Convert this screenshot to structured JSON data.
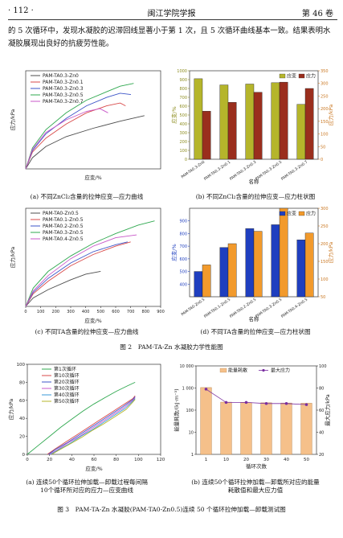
{
  "header": {
    "page_number": "· 112 ·",
    "journal": "闽江学院学报",
    "volume": "第 46 卷"
  },
  "body_text": [
    "的 5 次循环中，发现水凝胶的迟滞回线显著小于第 1 次，且 5 次循环曲线基本一致。结果表明水",
    "凝胶展现出良好的抗疲劳性能。"
  ],
  "captions": {
    "a": "(a) 不同ZnCl₂含量的拉伸应变—应力曲线",
    "b": "(b) 不同ZnCl₂含量的拉伸应变—应力柱状图",
    "c": "(c) 不同TA含量的拉伸应变—应力曲线",
    "d": "(d) 不同TA含量的拉伸应变—应力柱状图",
    "fig2": "图 2　PAM-TA-Zn 水凝胶力学性能图",
    "e1": "(a) 连续50个循环拉伸加载—卸载过程每间隔",
    "e2": "10个循环所对应的应力—应变曲线",
    "f1": "(b) 连续50个循环拉伸加载—卸载所对应的能量",
    "f2": "耗散值和最大应力值",
    "fig3": "图 3　PAM-TA-Zn 水凝胶(PAM-TA0-Zn0.5)连续 50 个循环拉伸加载—卸载测试图"
  },
  "colors": {
    "s1": "#4d4d4d",
    "s2": "#d84a4a",
    "s3": "#3d55c8",
    "s4": "#2fa84f",
    "s5": "#c857c8",
    "s6": "#3a9ad8",
    "olive": "#8c8c1e",
    "orangeAxis": "#c9751e",
    "bar_strain_b": "#b5b52b",
    "bar_stress_b": "#9a2e1d",
    "bar_strain_d": "#1f3fbf",
    "bar_stress_d": "#f29a2c",
    "bar_energy": "#f5c08a",
    "line_maxstress": "#7a2ea0"
  },
  "chart_data": [
    {
      "id": "a",
      "type": "line",
      "xlabel": "应变/%",
      "ylabel": "应力/kPa",
      "xlim": [
        0,
        1000
      ],
      "ylim": [
        0,
        350
      ],
      "xticks": [],
      "yticks": [],
      "series": [
        {
          "name": "PAM-TA0.3-Zn0",
          "x": [
            0,
            50,
            150,
            300,
            500,
            700,
            880
          ],
          "y": [
            0,
            40,
            80,
            115,
            145,
            170,
            190
          ]
        },
        {
          "name": "PAM-TA0.3-Zn0.1",
          "x": [
            0,
            50,
            150,
            300,
            450,
            600,
            700,
            740
          ],
          "y": [
            0,
            60,
            110,
            160,
            200,
            225,
            235,
            225
          ]
        },
        {
          "name": "PAM-TA0.3-Zn0.3",
          "x": [
            0,
            50,
            150,
            300,
            450,
            600,
            700,
            780
          ],
          "y": [
            0,
            65,
            125,
            180,
            225,
            255,
            270,
            265
          ]
        },
        {
          "name": "PAM-TA0.3-Zn0.5",
          "x": [
            0,
            50,
            150,
            300,
            450,
            600,
            700,
            800
          ],
          "y": [
            0,
            75,
            140,
            200,
            245,
            275,
            295,
            305
          ]
        },
        {
          "name": "PAM-TA0.3-Zn0.7",
          "x": [
            0,
            50,
            150,
            300,
            450,
            550,
            610
          ],
          "y": [
            0,
            70,
            130,
            175,
            205,
            215,
            200
          ]
        }
      ]
    },
    {
      "id": "b",
      "type": "bar",
      "xlabel": "名称",
      "ylabel": "应变/%",
      "y2label": "应力/kPa",
      "categories": [
        "PAM-TA0.3-Zn0",
        "PAM-TA0.3-Zn0.1",
        "PAM-TA0.3-Zn0.3",
        "PAM-TA0.3-Zn0.5",
        "PAM-TA0.3-Zn0.7"
      ],
      "ylim": [
        0,
        1000
      ],
      "yticks": [
        0,
        100,
        200,
        300,
        400,
        500,
        600,
        700,
        800,
        900,
        1000
      ],
      "y2lim": [
        0,
        350
      ],
      "y2ticks": [
        0,
        50,
        100,
        150,
        200,
        250,
        300,
        350
      ],
      "series": [
        {
          "name": "应变",
          "values": [
            910,
            840,
            850,
            865,
            620
          ],
          "axis": "left"
        },
        {
          "name": "应力",
          "values": [
            190,
            225,
            265,
            305,
            280
          ],
          "axis": "right"
        }
      ]
    },
    {
      "id": "c",
      "type": "line",
      "xlabel": "应变/%",
      "ylabel": "应力/kPa",
      "xlim": [
        0,
        900
      ],
      "ylim": [
        0,
        350
      ],
      "xticks": [
        0,
        100,
        200,
        300,
        400,
        500,
        600,
        700,
        800,
        900
      ],
      "yticks": [],
      "series": [
        {
          "name": "PAM-TA0-Zn0.5",
          "x": [
            0,
            50,
            150,
            300,
            400,
            500
          ],
          "y": [
            0,
            30,
            60,
            95,
            115,
            125
          ]
        },
        {
          "name": "PAM-TA0.1-Zn0.5",
          "x": [
            0,
            50,
            150,
            300,
            450,
            600,
            700
          ],
          "y": [
            0,
            45,
            90,
            145,
            185,
            215,
            230
          ]
        },
        {
          "name": "PAM-TA0.2-Zn0.5",
          "x": [
            0,
            50,
            150,
            300,
            450,
            600,
            680
          ],
          "y": [
            0,
            50,
            100,
            155,
            195,
            220,
            230
          ]
        },
        {
          "name": "PAM-TA0.3-Zn0.5",
          "x": [
            0,
            50,
            150,
            300,
            450,
            600,
            750,
            860
          ],
          "y": [
            0,
            65,
            125,
            180,
            225,
            260,
            290,
            305
          ]
        },
        {
          "name": "PAM-TA0.4-Zn0.5",
          "x": [
            0,
            50,
            150,
            300,
            450,
            600,
            740
          ],
          "y": [
            0,
            55,
            110,
            170,
            215,
            245,
            255
          ]
        }
      ]
    },
    {
      "id": "d",
      "type": "bar",
      "xlabel": "名称",
      "ylabel": "应变/%",
      "y2label": "应力/kPa",
      "categories": [
        "PAM-TA0-Zn0.5",
        "PAM-TA0.1-Zn0.5",
        "PAM-TA0.2-Zn0.5",
        "PAM-TA0.3-Zn0.5",
        "PAM-TA0.4-Zn0.5"
      ],
      "ylim": [
        300,
        1000
      ],
      "yticks": [
        400,
        500,
        600,
        700,
        800,
        900
      ],
      "y2lim": [
        50,
        300
      ],
      "y2ticks": [
        50,
        100,
        150,
        200,
        250,
        300
      ],
      "series": [
        {
          "name": "应变",
          "values": [
            500,
            690,
            840,
            870,
            750
          ],
          "axis": "left"
        },
        {
          "name": "应力",
          "values": [
            140,
            200,
            235,
            300,
            230
          ],
          "axis": "right"
        }
      ]
    },
    {
      "id": "e",
      "type": "line",
      "xlabel": "应变/%",
      "ylabel": "应力/kPa",
      "xlim": [
        0,
        120
      ],
      "ylim": [
        0,
        100
      ],
      "xticks": [
        0,
        20,
        40,
        60,
        80,
        100,
        120
      ],
      "yticks": [
        0,
        20,
        40,
        60,
        80,
        100
      ],
      "series": [
        {
          "name": "第1次循环",
          "x": [
            0,
            10,
            20,
            30,
            40,
            50,
            60,
            70,
            80,
            90,
            97
          ],
          "y": [
            0,
            10,
            20,
            30,
            39,
            48,
            56,
            63,
            70,
            76,
            80
          ]
        },
        {
          "name": "第10次循环",
          "x": [
            18,
            25,
            35,
            45,
            55,
            65,
            75,
            85,
            95,
            97
          ],
          "y": [
            0,
            6,
            14,
            22,
            30,
            38,
            46,
            54,
            62,
            65
          ]
        },
        {
          "name": "第20次循环",
          "x": [
            19,
            26,
            36,
            46,
            56,
            66,
            76,
            86,
            95,
            97
          ],
          "y": [
            0,
            6,
            13,
            21,
            29,
            37,
            45,
            53,
            61,
            64
          ]
        },
        {
          "name": "第30次循环",
          "x": [
            20,
            27,
            37,
            47,
            57,
            67,
            77,
            87,
            95,
            97
          ],
          "y": [
            0,
            5,
            13,
            20,
            28,
            36,
            44,
            52,
            60,
            63
          ]
        },
        {
          "name": "第40次循环",
          "x": [
            21,
            28,
            38,
            48,
            58,
            68,
            78,
            88,
            95,
            97
          ],
          "y": [
            0,
            5,
            12,
            20,
            27,
            35,
            43,
            51,
            59,
            62
          ]
        },
        {
          "name": "第50次循环",
          "x": [
            22,
            29,
            39,
            49,
            59,
            69,
            79,
            89,
            95,
            97
          ],
          "y": [
            0,
            5,
            12,
            19,
            27,
            34,
            42,
            50,
            58,
            61
          ]
        }
      ]
    },
    {
      "id": "f",
      "type": "bar",
      "xlabel": "循环次数",
      "ylabel": "能量耗散/(kJ·m⁻³)",
      "y2label": "最大应力/kPa",
      "categories": [
        "1",
        "10",
        "20",
        "30",
        "40",
        "50"
      ],
      "ylim": [
        1,
        10000
      ],
      "yscale": "log",
      "yticks": [
        "1",
        "10",
        "100",
        "1 000",
        "10 000"
      ],
      "y2lim": [
        20,
        100
      ],
      "y2ticks": [
        20,
        40,
        60,
        80,
        100
      ],
      "series": [
        {
          "name": "能量耗散",
          "values": [
            1050,
            230,
            220,
            215,
            210,
            205
          ],
          "axis": "left"
        },
        {
          "name": "最大应力",
          "values": [
            79,
            67,
            67,
            66,
            66,
            65
          ],
          "axis": "right"
        }
      ]
    }
  ]
}
